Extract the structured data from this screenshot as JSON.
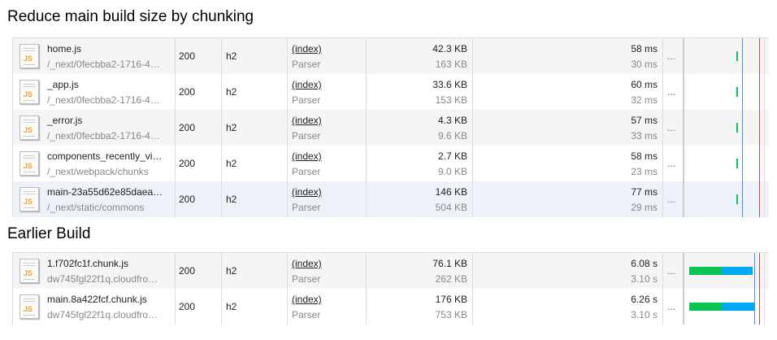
{
  "sections": [
    {
      "title": "Reduce main build size by chunking",
      "rows": [
        {
          "name": "home.js",
          "path": "/_next/0fecbba2-1716-4…",
          "status": "200",
          "protocol": "h2",
          "initiator": "(index)",
          "initiator_type": "Parser",
          "size": "42.3 KB",
          "resource_size": "163 KB",
          "time": "58 ms",
          "latency": "30 ms",
          "more": "...",
          "waterfall": {
            "green_start": 0.62,
            "green_end": 0.64,
            "blue_start": 0.64,
            "blue_end": 0.64
          }
        },
        {
          "name": "_app.js",
          "path": "/_next/0fecbba2-1716-4…",
          "status": "200",
          "protocol": "h2",
          "initiator": "(index)",
          "initiator_type": "Parser",
          "size": "33.6 KB",
          "resource_size": "153 KB",
          "time": "60 ms",
          "latency": "32 ms",
          "more": "...",
          "waterfall": {
            "green_start": 0.62,
            "green_end": 0.64,
            "blue_start": 0.64,
            "blue_end": 0.64
          }
        },
        {
          "name": "_error.js",
          "path": "/_next/0fecbba2-1716-4…",
          "status": "200",
          "protocol": "h2",
          "initiator": "(index)",
          "initiator_type": "Parser",
          "size": "4.3 KB",
          "resource_size": "9.6 KB",
          "time": "57 ms",
          "latency": "33 ms",
          "more": "...",
          "waterfall": {
            "green_start": 0.62,
            "green_end": 0.64,
            "blue_start": 0.64,
            "blue_end": 0.64
          }
        },
        {
          "name": "components_recently_vi…",
          "path": "/_next/webpack/chunks",
          "status": "200",
          "protocol": "h2",
          "initiator": "(index)",
          "initiator_type": "Parser",
          "size": "2.7 KB",
          "resource_size": "9.0 KB",
          "time": "58 ms",
          "latency": "23 ms",
          "more": "...",
          "waterfall": {
            "green_start": 0.62,
            "green_end": 0.64,
            "blue_start": 0.64,
            "blue_end": 0.64
          }
        },
        {
          "name": "main-23a55d62e85daea…",
          "path": "/_next/static/commons",
          "status": "200",
          "protocol": "h2",
          "initiator": "(index)",
          "initiator_type": "Parser",
          "size": "146 KB",
          "resource_size": "504 KB",
          "time": "77 ms",
          "latency": "29 ms",
          "more": "...",
          "waterfall": {
            "green_start": 0.62,
            "green_end": 0.64,
            "blue_start": 0.64,
            "blue_end": 0.64
          }
        }
      ],
      "markers": {
        "dom_content_loaded": 0.68,
        "load": 0.88
      }
    },
    {
      "title": "Earlier Build",
      "rows": [
        {
          "name": "1.f702fc1f.chunk.js",
          "path": "dw745fgl22f1q.cloudfro…",
          "status": "200",
          "protocol": "h2",
          "initiator": "(index)",
          "initiator_type": "Parser",
          "size": "76.1 KB",
          "resource_size": "262 KB",
          "time": "6.08 s",
          "latency": "3.10 s",
          "more": "...",
          "waterfall": {
            "green_start": 0.06,
            "green_end": 0.44,
            "blue_start": 0.44,
            "blue_end": 0.81
          }
        },
        {
          "name": "main.8a422fcf.chunk.js",
          "path": "dw745fgl22f1q.cloudfro…",
          "status": "200",
          "protocol": "h2",
          "initiator": "(index)",
          "initiator_type": "Parser",
          "size": "176 KB",
          "resource_size": "753 KB",
          "time": "6.26 s",
          "latency": "3.10 s",
          "more": "...",
          "waterfall": {
            "green_start": 0.06,
            "green_end": 0.44,
            "blue_start": 0.44,
            "blue_end": 0.83
          }
        }
      ],
      "markers": {
        "dom_content_loaded": 0.83,
        "load": 0.88
      }
    }
  ],
  "colors": {
    "waiting": "#0bc451",
    "download": "#00a9f5",
    "dom_content_loaded": "#4a90e2",
    "load": "#d0454a"
  }
}
